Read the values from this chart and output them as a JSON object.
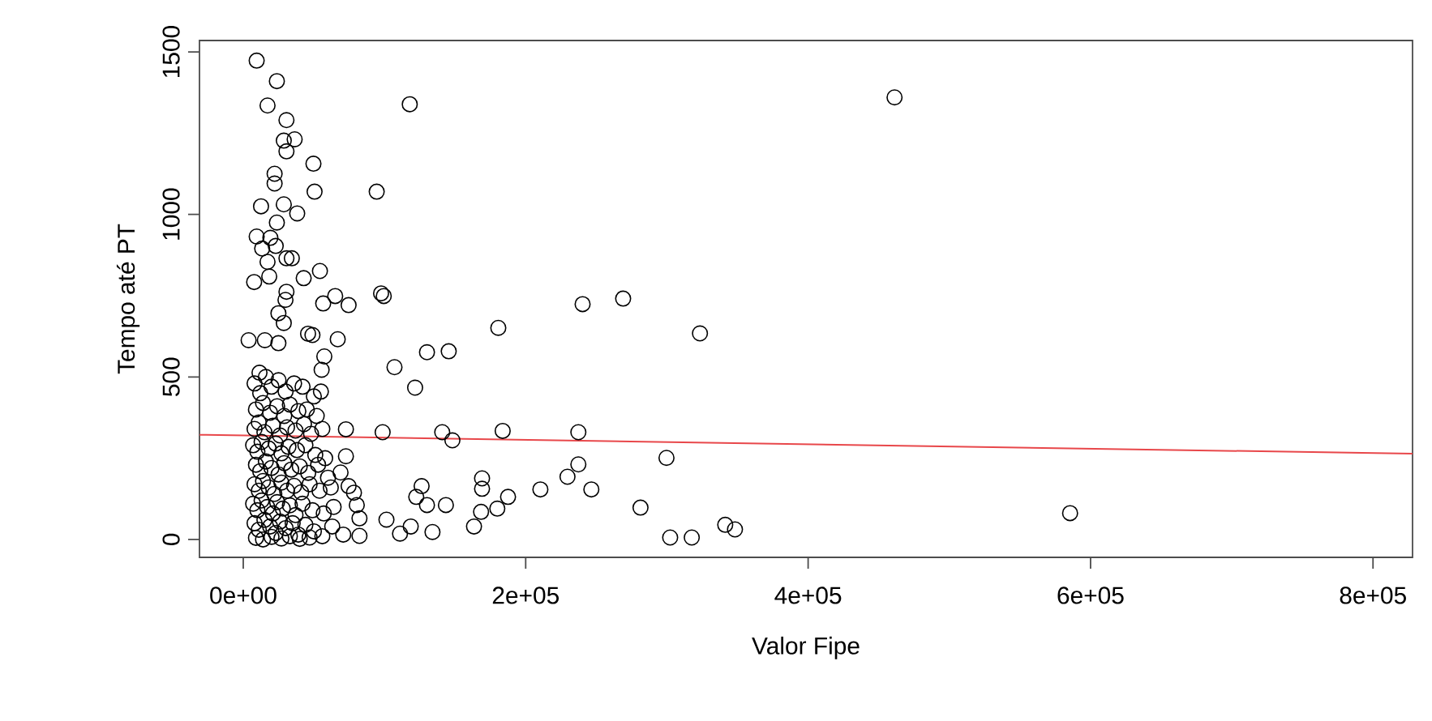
{
  "chart_data": {
    "type": "scatter",
    "xlabel": "Valor Fipe",
    "ylabel": "Tempo até PT",
    "marker": "circle",
    "grid": false,
    "xlim": [
      -31000,
      828000
    ],
    "ylim": [
      -55,
      1535
    ],
    "xticks": [
      {
        "value": 0,
        "label": "0e+00"
      },
      {
        "value": 200000,
        "label": "2e+05"
      },
      {
        "value": 400000,
        "label": "4e+05"
      },
      {
        "value": 600000,
        "label": "6e+05"
      },
      {
        "value": 800000,
        "label": "8e+05"
      }
    ],
    "yticks": [
      0,
      500,
      1000,
      1500
    ],
    "series": [
      {
        "color": "#000000",
        "x": [
          9500,
          23800,
          17200,
          30600,
          36400,
          28700,
          30600,
          117900,
          49700,
          22200,
          22200,
          50500,
          94500,
          12600,
          28700,
          38200,
          23800,
          9500,
          19200,
          13400,
          23000,
          30600,
          34400,
          17200,
          54300,
          7700,
          18400,
          42800,
          30600,
          29900,
          97600,
          99500,
          65100,
          56600,
          74600,
          24900,
          28700,
          3800,
          15300,
          24900,
          45900,
          49000,
          66900,
          107100,
          130100,
          145500,
          121700,
          57400,
          55500,
          11500,
          72700,
          98700,
          140900,
          72700,
          68900,
          74600,
          78400,
          80400,
          82300,
          70800,
          82300,
          101400,
          111000,
          118600,
          126300,
          122500,
          130100,
          134000,
          143500,
          240300,
          269000,
          323400,
          180600,
          183700,
          237300,
          148100,
          299700,
          237300,
          229600,
          246500,
          210400,
          187500,
          169100,
          169100,
          179900,
          168400,
          163400,
          281300,
          302300,
          317600,
          341300,
          348200,
          585500,
          461200,
          8000,
          12000,
          16000,
          20000,
          25000,
          30000,
          36000,
          42000,
          50000,
          55000,
          9000,
          14000,
          19000,
          24000,
          29000,
          33000,
          39000,
          45000,
          52000,
          8000,
          11000,
          15000,
          21000,
          26000,
          31000,
          37000,
          43000,
          48000,
          56000,
          7000,
          10000,
          13000,
          18000,
          23000,
          27000,
          32000,
          38000,
          44000,
          51000,
          58000,
          9000,
          12000,
          16000,
          20000,
          25000,
          29000,
          34000,
          40000,
          46000,
          53000,
          60000,
          8000,
          11000,
          14000,
          18000,
          22000,
          27000,
          31000,
          36000,
          41000,
          47000,
          54000,
          62000,
          7000,
          10000,
          13000,
          17000,
          21000,
          24000,
          28000,
          33000,
          37000,
          42000,
          49000,
          57000,
          64000,
          8000,
          11000,
          15000,
          19000,
          23000,
          26000,
          30000,
          35000,
          39000,
          44000,
          50000,
          56000,
          63000,
          9000,
          14000,
          20000,
          27000,
          33000,
          40000,
          47000
        ],
        "values": [
          1473,
          1410,
          1335,
          1290,
          1231,
          1227,
          1194,
          1339,
          1156,
          1125,
          1095,
          1070,
          1070,
          1025,
          1031,
          1003,
          975,
          932,
          928,
          895,
          903,
          865,
          865,
          854,
          826,
          792,
          809,
          804,
          762,
          737,
          757,
          749,
          749,
          726,
          721,
          696,
          666,
          613,
          613,
          604,
          633,
          629,
          616,
          530,
          576,
          579,
          467,
          563,
          522,
          513,
          339,
          330,
          330,
          256,
          206,
          164,
          144,
          106,
          65,
          15,
          11,
          61,
          18,
          40,
          164,
          131,
          106,
          23,
          106,
          724,
          741,
          634,
          651,
          334,
          330,
          305,
          251,
          231,
          193,
          154,
          154,
          131,
          188,
          156,
          95,
          85,
          40,
          98,
          6,
          6,
          45,
          31,
          81,
          1360,
          480,
          450,
          500,
          470,
          490,
          455,
          480,
          470,
          440,
          455,
          400,
          420,
          390,
          410,
          380,
          415,
          395,
          400,
          380,
          340,
          360,
          330,
          350,
          320,
          345,
          335,
          355,
          325,
          340,
          290,
          270,
          300,
          280,
          295,
          265,
          285,
          275,
          290,
          260,
          250,
          230,
          210,
          240,
          220,
          200,
          235,
          215,
          225,
          205,
          230,
          190,
          170,
          150,
          180,
          160,
          140,
          175,
          150,
          165,
          145,
          170,
          150,
          160,
          110,
          90,
          120,
          100,
          80,
          115,
          95,
          105,
          75,
          110,
          90,
          80,
          100,
          50,
          30,
          60,
          40,
          20,
          55,
          35,
          50,
          15,
          45,
          25,
          10,
          40,
          5,
          0,
          8,
          3,
          10,
          2,
          6
        ]
      },
      {
        "type": "line",
        "color": "#e8474a",
        "line_style": "solid",
        "marker": "none",
        "x": [
          -31000,
          828000
        ],
        "values": [
          322,
          264
        ]
      }
    ]
  }
}
